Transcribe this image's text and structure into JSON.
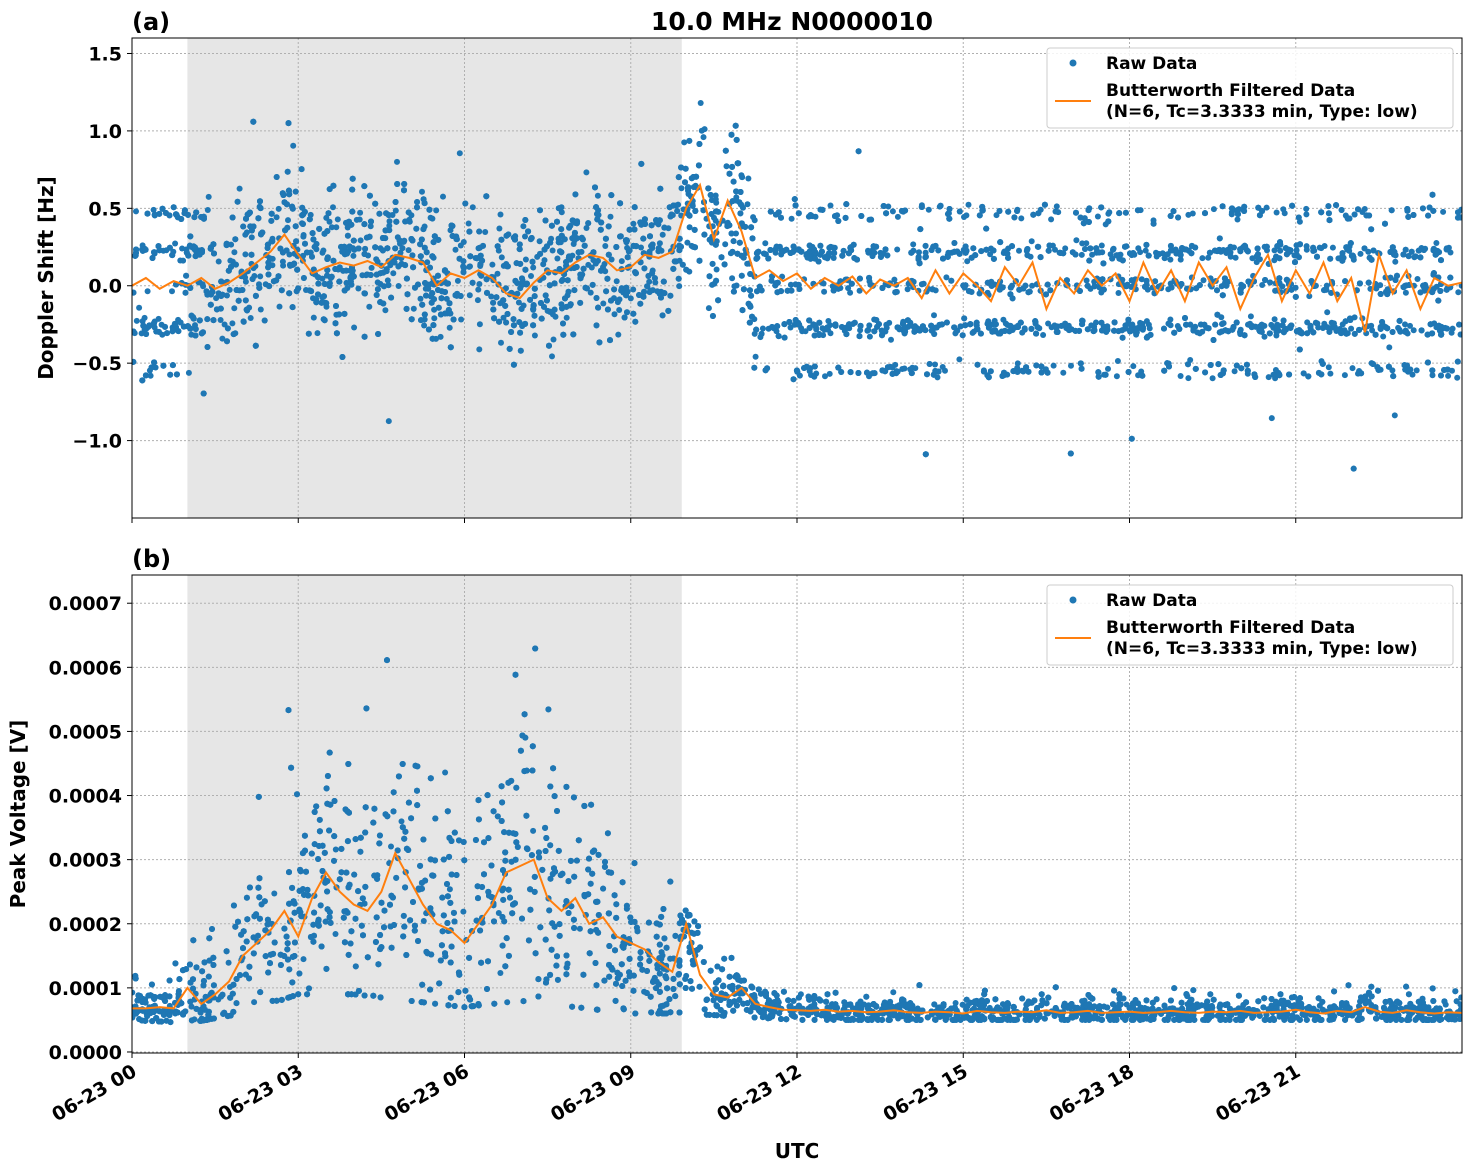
{
  "title": "10.0 MHz N0000010",
  "xlabel": "UTC",
  "colors": {
    "raw": "#1f77b4",
    "filtered": "#ff7f0e",
    "shade": "#e6e6e6"
  },
  "chart_data": [
    {
      "type": "scatter+line",
      "panel_label": "(a)",
      "ylabel": "Doppler Shift [Hz]",
      "xlim_hours": [
        0,
        24
      ],
      "ylim": [
        -1.5,
        1.6
      ],
      "grid": true,
      "legend_position": "top-right",
      "shaded_interval_hours": [
        1.0,
        9.92
      ],
      "x_ticks": [
        "06-23 00",
        "06-23 03",
        "06-23 06",
        "06-23 09",
        "06-23 12",
        "06-23 15",
        "06-23 18",
        "06-23 21"
      ],
      "x_tick_hours": [
        0,
        3,
        6,
        9,
        12,
        15,
        18,
        21
      ],
      "y_ticks": [
        -1.0,
        -0.5,
        0.0,
        0.5,
        1.0,
        1.5
      ],
      "y_tick_labels": [
        "−1.0",
        "−0.5",
        "0.0",
        "0.5",
        "1.0",
        "1.5"
      ],
      "legend": [
        "Raw Data",
        "Butterworth Filtered Data",
        "(N=6, Tc=3.3333 min, Type: low)"
      ],
      "raw_data": {
        "discrete_levels_hz": [
          -0.55,
          -0.27,
          0.0,
          0.22,
          0.47
        ],
        "continuous_band_hours": [
          1.3,
          11.2
        ],
        "band_half_width_hz": 0.4
      },
      "filtered_series": {
        "name": "Butterworth Filtered Data",
        "x_step_hours": 0.25,
        "values": [
          0.0,
          0.05,
          -0.02,
          0.03,
          0.0,
          0.05,
          -0.02,
          0.02,
          0.08,
          0.15,
          0.22,
          0.33,
          0.2,
          0.08,
          0.12,
          0.15,
          0.13,
          0.16,
          0.12,
          0.2,
          0.18,
          0.15,
          0.0,
          0.08,
          0.05,
          0.1,
          0.05,
          -0.05,
          -0.08,
          0.02,
          0.1,
          0.08,
          0.15,
          0.2,
          0.18,
          0.1,
          0.12,
          0.2,
          0.18,
          0.22,
          0.5,
          0.65,
          0.3,
          0.55,
          0.35,
          0.05,
          0.1,
          0.03,
          0.08,
          -0.02,
          0.05,
          0.0,
          0.06,
          -0.05,
          0.04,
          0.0,
          0.05,
          -0.08,
          0.1,
          -0.05,
          0.08,
          0.0,
          -0.1,
          0.12,
          0.0,
          0.15,
          -0.15,
          0.05,
          -0.05,
          0.1,
          0.0,
          0.08,
          -0.1,
          0.15,
          -0.05,
          0.1,
          -0.1,
          0.15,
          0.0,
          0.12,
          -0.15,
          0.05,
          0.2,
          -0.1,
          0.1,
          -0.05,
          0.15,
          -0.1,
          0.05,
          -0.3,
          0.2,
          -0.05,
          0.1,
          -0.15,
          0.05,
          0.0,
          0.02
        ]
      }
    },
    {
      "type": "scatter+line",
      "panel_label": "(b)",
      "ylabel": "Peak Voltage [V]",
      "xlim_hours": [
        0,
        24
      ],
      "ylim": [
        -1.6e-06,
        0.000744
      ],
      "grid": true,
      "legend_position": "top-right",
      "shaded_interval_hours": [
        1.0,
        9.92
      ],
      "x_ticks": [
        "06-23 00",
        "06-23 03",
        "06-23 06",
        "06-23 09",
        "06-23 12",
        "06-23 15",
        "06-23 18",
        "06-23 21"
      ],
      "x_tick_hours": [
        0,
        3,
        6,
        9,
        12,
        15,
        18,
        21
      ],
      "y_ticks": [
        0,
        0.0001,
        0.0002,
        0.0003,
        0.0004,
        0.0005,
        0.0006,
        0.0007
      ],
      "y_tick_labels": [
        "0.0000",
        "0.0001",
        "0.0002",
        "0.0003",
        "0.0004",
        "0.0005",
        "0.0006",
        "0.0007"
      ],
      "legend": [
        "Raw Data",
        "Butterworth Filtered Data",
        "(N=6, Tc=3.3333 min, Type: low)"
      ],
      "raw_data": {
        "hourly_low_v": [
          5e-05,
          4.5e-05,
          6e-05,
          9e-05,
          9e-05,
          8e-05,
          7e-05,
          8e-05,
          7e-05,
          6e-05,
          6e-05,
          5.5e-05,
          5e-05,
          5e-05,
          5e-05,
          5e-05,
          5e-05,
          5e-05,
          5e-05,
          5e-05,
          5e-05,
          5e-05,
          5e-05,
          5e-05,
          5e-05
        ],
        "hourly_high_v": [
          0.0001,
          0.00013,
          0.00025,
          0.00045,
          0.00048,
          0.00045,
          0.00042,
          0.0005,
          0.0004,
          0.0003,
          0.00022,
          0.00011,
          9e-05,
          9e-05,
          9e-05,
          9e-05,
          9e-05,
          9e-05,
          9e-05,
          9e-05,
          9e-05,
          9e-05,
          9e-05,
          9e-05,
          9e-05
        ]
      },
      "filtered_series": {
        "name": "Butterworth Filtered Data",
        "x_step_hours": 0.25,
        "values": [
          6.8e-05,
          6.8e-05,
          7e-05,
          6.8e-05,
          0.0001,
          7.5e-05,
          9e-05,
          0.00011,
          0.00015,
          0.00017,
          0.00019,
          0.00022,
          0.00018,
          0.00024,
          0.00028,
          0.00025,
          0.00023,
          0.00022,
          0.00025,
          0.00031,
          0.00027,
          0.00023,
          0.0002,
          0.00019,
          0.00017,
          0.0002,
          0.00023,
          0.00028,
          0.00029,
          0.0003,
          0.00024,
          0.00022,
          0.00024,
          0.0002,
          0.00021,
          0.00018,
          0.00017,
          0.00016,
          0.00014,
          0.000125,
          0.0002,
          0.00012,
          9e-05,
          8.5e-05,
          0.0001,
          7.5e-05,
          7e-05,
          6.6e-05,
          6.5e-05,
          6.4e-05,
          6.6e-05,
          6.3e-05,
          6.4e-05,
          6.2e-05,
          6.3e-05,
          6.5e-05,
          6.2e-05,
          6.1e-05,
          6.3e-05,
          6.2e-05,
          6e-05,
          6.4e-05,
          6.2e-05,
          6.1e-05,
          6.3e-05,
          6.2e-05,
          6.5e-05,
          6.1e-05,
          6.2e-05,
          6.4e-05,
          6.1e-05,
          6.2e-05,
          6.3e-05,
          6.1e-05,
          6.2e-05,
          6.4e-05,
          6.2e-05,
          6.1e-05,
          6.3e-05,
          6.2e-05,
          6.4e-05,
          6.1e-05,
          6.2e-05,
          6.3e-05,
          6.6e-05,
          6.2e-05,
          6e-05,
          6.4e-05,
          6.2e-05,
          7e-05,
          6.3e-05,
          6.1e-05,
          6.5e-05,
          6.2e-05,
          6e-05,
          6.2e-05,
          6.1e-05
        ]
      }
    }
  ]
}
